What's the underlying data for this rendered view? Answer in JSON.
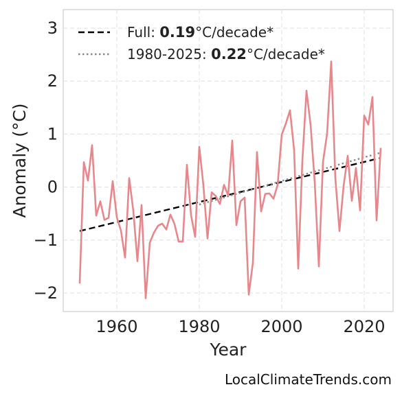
{
  "chart_data": {
    "type": "line",
    "xlabel": "Year",
    "ylabel": "Anomaly (°C)",
    "xlim": [
      1947,
      2027
    ],
    "ylim": [
      -2.35,
      3.35
    ],
    "xticks": [
      1960,
      1980,
      2000,
      2020
    ],
    "yticks": [
      -2,
      -1,
      0,
      1,
      2,
      3
    ],
    "ytick_labels": [
      "−2",
      "−1",
      "0",
      "1",
      "2",
      "3"
    ],
    "grid": true,
    "legend_position": "top-left",
    "series": [
      {
        "color": "#e8878b",
        "x": [
          1951,
          1952,
          1953,
          1954,
          1955,
          1956,
          1957,
          1958,
          1959,
          1960,
          1961,
          1962,
          1963,
          1964,
          1965,
          1966,
          1967,
          1968,
          1969,
          1970,
          1971,
          1972,
          1973,
          1974,
          1975,
          1976,
          1977,
          1978,
          1979,
          1980,
          1981,
          1982,
          1983,
          1984,
          1985,
          1986,
          1987,
          1988,
          1989,
          1990,
          1991,
          1992,
          1993,
          1994,
          1995,
          1996,
          1997,
          1998,
          1999,
          2000,
          2001,
          2002,
          2003,
          2004,
          2005,
          2006,
          2007,
          2008,
          2009,
          2010,
          2011,
          2012,
          2013,
          2014,
          2015,
          2016,
          2017,
          2018,
          2019,
          2020,
          2021,
          2022,
          2023,
          2024
        ],
        "y": [
          -1.82,
          0.47,
          0.12,
          0.79,
          -0.54,
          -0.27,
          -0.62,
          -0.58,
          0.11,
          -0.57,
          -0.82,
          -1.33,
          0.17,
          -0.45,
          -1.4,
          -0.34,
          -2.1,
          -1.05,
          -0.86,
          -0.73,
          -0.69,
          -0.8,
          -0.52,
          -0.7,
          -1.03,
          -1.03,
          0.42,
          -0.53,
          -0.94,
          0.76,
          0.03,
          -0.97,
          -0.1,
          -0.17,
          -0.32,
          0.04,
          -0.16,
          0.88,
          -0.72,
          -0.27,
          -0.2,
          -2.03,
          -1.43,
          0.66,
          -0.46,
          -0.13,
          -0.12,
          -0.22,
          0.04,
          0.99,
          1.2,
          1.45,
          0.7,
          -1.54,
          0.49,
          1.82,
          1.17,
          0.09,
          -1.5,
          0.47,
          1.01,
          2.37,
          0.17,
          -0.83,
          0.02,
          0.59,
          -0.26,
          0.36,
          -0.44,
          1.35,
          1.18,
          1.7,
          -0.63,
          0.74
        ]
      }
    ],
    "trends": [
      {
        "label_prefix": "Full: ",
        "label_value": "0.19",
        "label_suffix": "°C/decade*",
        "style": "dashed",
        "color": "#000000",
        "x": [
          1951,
          2024
        ],
        "y": [
          -0.83,
          0.55
        ]
      },
      {
        "label_prefix": "1980-2025: ",
        "label_value": "0.22",
        "label_suffix": "°C/decade*",
        "style": "dotted",
        "color": "#888888",
        "x": [
          1980,
          2024
        ],
        "y": [
          -0.33,
          0.65
        ]
      }
    ]
  },
  "credit": "LocalClimateTrends.com"
}
